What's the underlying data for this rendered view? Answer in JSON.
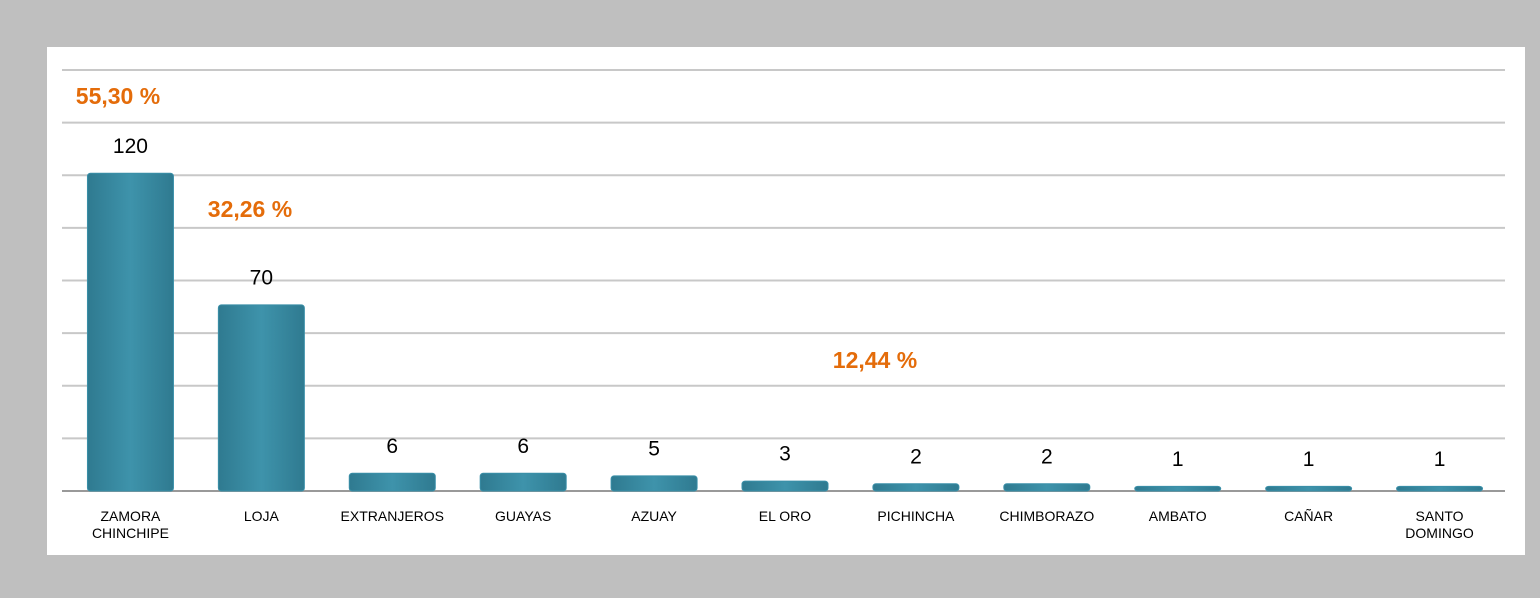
{
  "chart_data": {
    "type": "bar",
    "categories": [
      "ZAMORA CHINCHIPE",
      "LOJA",
      "EXTRANJEROS",
      "GUAYAS",
      "AZUAY",
      "EL ORO",
      "PICHINCHA",
      "CHIMBORAZO",
      "AMBATO",
      "CAÑAR",
      "SANTO DOMINGO"
    ],
    "values": [
      120,
      70,
      6,
      6,
      5,
      3,
      2,
      2,
      1,
      1,
      1
    ],
    "color": "#3a8fa8",
    "ylim": [
      0,
      160
    ],
    "yticks": [
      0,
      20,
      40,
      60,
      80,
      100,
      120,
      140,
      160
    ],
    "grid": true,
    "annotations": [
      {
        "text": "55,30 %"
      },
      {
        "text": "32,26 %"
      },
      {
        "text": "12,44 %"
      }
    ]
  }
}
